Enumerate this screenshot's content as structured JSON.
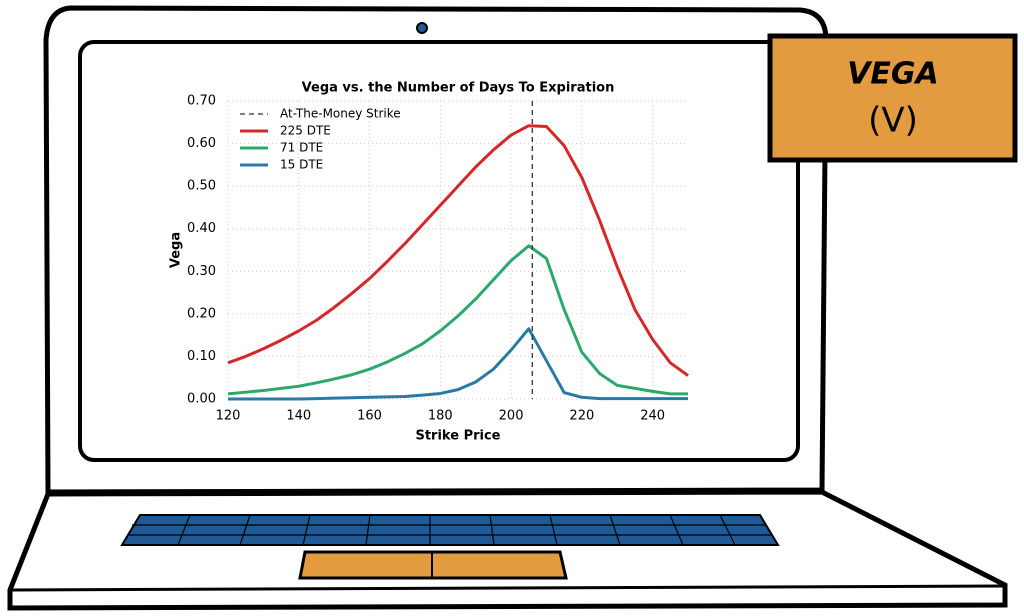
{
  "badge": {
    "title": "VEGA",
    "symbol": "(V)"
  },
  "chart_data": {
    "type": "line",
    "title": "Vega vs. the Number of Days To Expiration",
    "x_label": "Strike Price",
    "y_label": "Vega",
    "x": [
      120,
      125,
      130,
      135,
      140,
      145,
      150,
      155,
      160,
      165,
      170,
      175,
      180,
      185,
      190,
      195,
      200,
      205,
      210,
      215,
      220,
      225,
      230,
      235,
      240,
      245,
      250
    ],
    "series": [
      {
        "name": "225 DTE",
        "color": "#d62728",
        "values": [
          0.085,
          0.1,
          0.118,
          0.138,
          0.16,
          0.185,
          0.215,
          0.248,
          0.283,
          0.323,
          0.365,
          0.41,
          0.455,
          0.5,
          0.545,
          0.585,
          0.62,
          0.642,
          0.64,
          0.595,
          0.52,
          0.42,
          0.31,
          0.21,
          0.14,
          0.085,
          0.055
        ]
      },
      {
        "name": "71 DTE",
        "color": "#2ca86a",
        "values": [
          0.012,
          0.016,
          0.02,
          0.025,
          0.03,
          0.038,
          0.047,
          0.057,
          0.07,
          0.087,
          0.107,
          0.13,
          0.16,
          0.195,
          0.235,
          0.28,
          0.325,
          0.36,
          0.33,
          0.21,
          0.11,
          0.06,
          0.032,
          0.025,
          0.018,
          0.012,
          0.012
        ]
      },
      {
        "name": "15 DTE",
        "color": "#2a7aa8",
        "values": [
          0.0,
          0.0,
          0.0,
          0.0,
          0.0,
          0.001,
          0.002,
          0.003,
          0.004,
          0.005,
          0.006,
          0.009,
          0.013,
          0.022,
          0.04,
          0.07,
          0.115,
          0.165,
          0.09,
          0.015,
          0.004,
          0.001,
          0.001,
          0.001,
          0.001,
          0.001,
          0.001
        ]
      }
    ],
    "atm_label": "At-The-Money Strike",
    "atm_strike": 206,
    "xlim": [
      120,
      250
    ],
    "ylim": [
      0,
      0.7
    ],
    "xticks": [
      120,
      140,
      160,
      180,
      200,
      220,
      240
    ],
    "yticks": [
      {
        "value": 0,
        "label": "0.00"
      },
      {
        "value": 0.1,
        "label": "0.10"
      },
      {
        "value": 0.2,
        "label": "0.20"
      },
      {
        "value": 0.3,
        "label": "0.30"
      },
      {
        "value": 0.4,
        "label": "0.40"
      },
      {
        "value": 0.5,
        "label": "0.50"
      },
      {
        "value": 0.6,
        "label": "0.60"
      },
      {
        "value": 0.7,
        "label": "0.70"
      }
    ],
    "grid": true,
    "legend": "upper left"
  }
}
